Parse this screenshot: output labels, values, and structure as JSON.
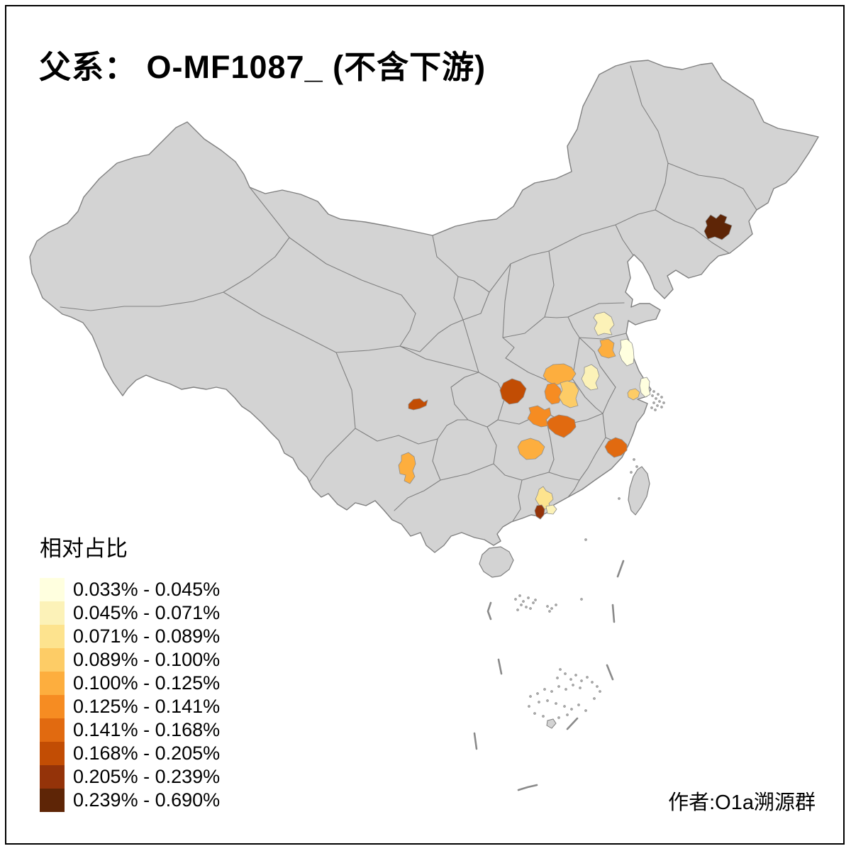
{
  "title": {
    "text": "父系： O-MF1087_ (不含下游)"
  },
  "legend": {
    "title": "相对占比",
    "classes": [
      {
        "range": "0.033% - 0.045%",
        "color": "#FFFFDF"
      },
      {
        "range": "0.045% - 0.071%",
        "color": "#FCF2B8"
      },
      {
        "range": "0.071% - 0.089%",
        "color": "#FDE38E"
      },
      {
        "range": "0.089% - 0.100%",
        "color": "#FDCC66"
      },
      {
        "range": "0.100% - 0.125%",
        "color": "#FDAE3E"
      },
      {
        "range": "0.125% - 0.141%",
        "color": "#F68C22"
      },
      {
        "range": "0.141% - 0.168%",
        "color": "#E16A10"
      },
      {
        "range": "0.168% - 0.205%",
        "color": "#C24D04"
      },
      {
        "range": "0.205% - 0.239%",
        "color": "#943309"
      },
      {
        "range": "0.239% - 0.690%",
        "color": "#5E2506"
      }
    ]
  },
  "attribution": {
    "text": "作者:O1a溯源群"
  },
  "map": {
    "sea_color": "#ffffff",
    "land_color": "#d3d3d3",
    "border_color": "#808080",
    "frame_color": "#000000",
    "regions": [
      {
        "id": "jilin-southeast",
        "color": "#5E2506",
        "range": "0.239% - 0.690%"
      },
      {
        "id": "shandong-south",
        "color": "#FCF2B8",
        "range": "0.045% - 0.071%"
      },
      {
        "id": "jiangsu-north",
        "color": "#FDAE3E",
        "range": "0.100% - 0.125%"
      },
      {
        "id": "jiangsu-yancheng",
        "color": "#FFFFDF",
        "range": "0.033% - 0.045%"
      },
      {
        "id": "henan-south",
        "color": "#FDAE3E",
        "range": "0.100% - 0.125%"
      },
      {
        "id": "anhui-hefei",
        "color": "#FCF2B8",
        "range": "0.045% - 0.071%"
      },
      {
        "id": "hubei-northwest",
        "color": "#F68C22",
        "range": "0.125% - 0.141%"
      },
      {
        "id": "hubei-northeast",
        "color": "#FDCC66",
        "range": "0.089% - 0.100%"
      },
      {
        "id": "chongqing-northeast",
        "color": "#C24D04",
        "range": "0.168% - 0.205%"
      },
      {
        "id": "sichuan-yaan",
        "color": "#C24D04",
        "range": "0.168% - 0.205%"
      },
      {
        "id": "hunan-changde",
        "color": "#F68C22",
        "range": "0.125% - 0.141%"
      },
      {
        "id": "hunan-yueyang",
        "color": "#E16A10",
        "range": "0.141% - 0.168%"
      },
      {
        "id": "hunan-central",
        "color": "#FDAE3E",
        "range": "0.100% - 0.125%"
      },
      {
        "id": "fujian-ningde",
        "color": "#E16A10",
        "range": "0.141% - 0.168%"
      },
      {
        "id": "yunnan-kunming",
        "color": "#FDAE3E",
        "range": "0.100% - 0.125%"
      },
      {
        "id": "guangdong-north",
        "color": "#FDE38E",
        "range": "0.071% - 0.089%"
      },
      {
        "id": "guangdong-east-pale",
        "color": "#FCF2B8",
        "range": "0.045% - 0.071%"
      },
      {
        "id": "guangdong-pearl-dark",
        "color": "#943309",
        "range": "0.205% - 0.239%"
      },
      {
        "id": "shanghai",
        "color": "#FFFFDF",
        "range": "0.033% - 0.045%"
      },
      {
        "id": "jiangsu-suzhou",
        "color": "#FDCC66",
        "range": "0.089% - 0.100%"
      }
    ]
  }
}
